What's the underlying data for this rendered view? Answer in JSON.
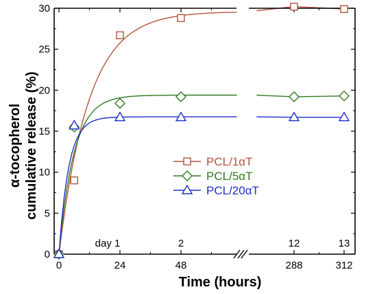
{
  "chart_data": {
    "type": "scatter",
    "title": "",
    "xlabel": "Time (hours)",
    "ylabel_lines": [
      "α-tocopherol",
      "cumulative release (%)"
    ],
    "ylim": [
      0,
      30
    ],
    "yticks": [
      "0",
      "5",
      "10",
      "15",
      "20",
      "25",
      "30"
    ],
    "x_segments": [
      {
        "range": [
          0,
          72
        ],
        "ticks": [
          "0",
          "24",
          "48"
        ],
        "tick_values": [
          0,
          24,
          48
        ]
      },
      {
        "range": [
          270,
          320
        ],
        "ticks": [
          "288",
          "312"
        ],
        "tick_values": [
          288,
          312
        ]
      }
    ],
    "axis_break": "//",
    "day_labels": [
      {
        "text": "day 1",
        "x": 24
      },
      {
        "text": "2",
        "x": 48
      },
      {
        "text": "12",
        "x": 288
      },
      {
        "text": "13",
        "x": 312
      }
    ],
    "legend_position": "center-right",
    "grid": false,
    "series": [
      {
        "name": "PCL/1αT",
        "color": "#b5533c",
        "marker": "square",
        "points": [
          [
            0,
            0
          ],
          [
            6,
            9
          ],
          [
            24,
            26.7
          ],
          [
            48,
            28.8
          ],
          [
            288,
            30.2
          ],
          [
            312,
            29.9
          ]
        ]
      },
      {
        "name": "PCL/5αT",
        "color": "#2f7a1f",
        "marker": "diamond",
        "points": [
          [
            0,
            0
          ],
          [
            6,
            15.5
          ],
          [
            24,
            18.4
          ],
          [
            48,
            19.2
          ],
          [
            288,
            19.2
          ],
          [
            312,
            19.3
          ]
        ]
      },
      {
        "name": "PCL/20αT",
        "color": "#1f2fc8",
        "marker": "triangle",
        "points": [
          [
            0,
            0
          ],
          [
            6,
            15.7
          ],
          [
            24,
            16.7
          ],
          [
            48,
            16.7
          ],
          [
            288,
            16.7
          ],
          [
            312,
            16.7
          ]
        ]
      }
    ]
  }
}
